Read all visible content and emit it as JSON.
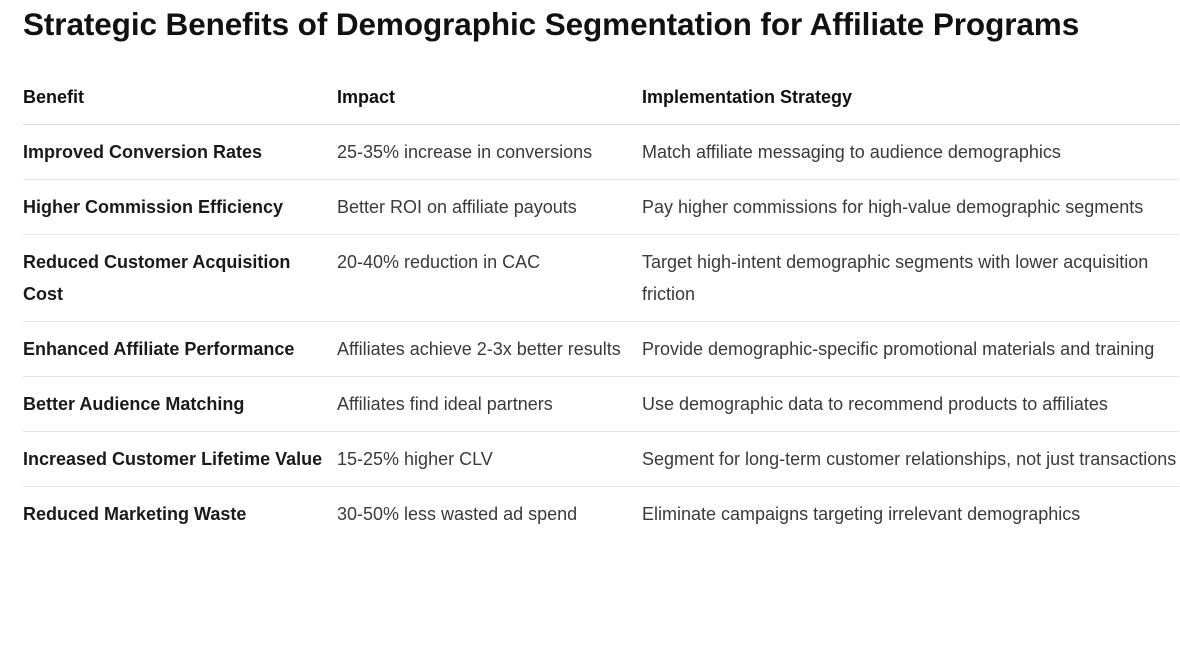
{
  "title": "Strategic Benefits of Demographic Segmentation for Affiliate Programs",
  "table": {
    "headers": [
      "Benefit",
      "Impact",
      "Implementation Strategy"
    ],
    "rows": [
      {
        "benefit": "Improved Conversion Rates",
        "impact": "25-35% increase in conversions",
        "strategy": "Match affiliate messaging to audience demographics"
      },
      {
        "benefit": "Higher Commission Efficiency",
        "impact": "Better ROI on affiliate payouts",
        "strategy": "Pay higher commissions for high-value demographic segments"
      },
      {
        "benefit": "Reduced Customer Acquisition Cost",
        "impact": "20-40% reduction in CAC",
        "strategy": "Target high-intent demographic segments with lower acquisition friction"
      },
      {
        "benefit": "Enhanced Affiliate Performance",
        "impact": "Affiliates achieve 2-3x better results",
        "strategy": "Provide demographic-specific promotional materials and training"
      },
      {
        "benefit": "Better Audience Matching",
        "impact": "Affiliates find ideal partners",
        "strategy": "Use demographic data to recommend products to affiliates"
      },
      {
        "benefit": "Increased Customer Lifetime Value",
        "impact": "15-25% higher CLV",
        "strategy": "Segment for long-term customer relationships, not just transactions"
      },
      {
        "benefit": "Reduced Marketing Waste",
        "impact": "30-50% less wasted ad spend",
        "strategy": "Eliminate campaigns targeting irrelevant demographics"
      }
    ]
  }
}
